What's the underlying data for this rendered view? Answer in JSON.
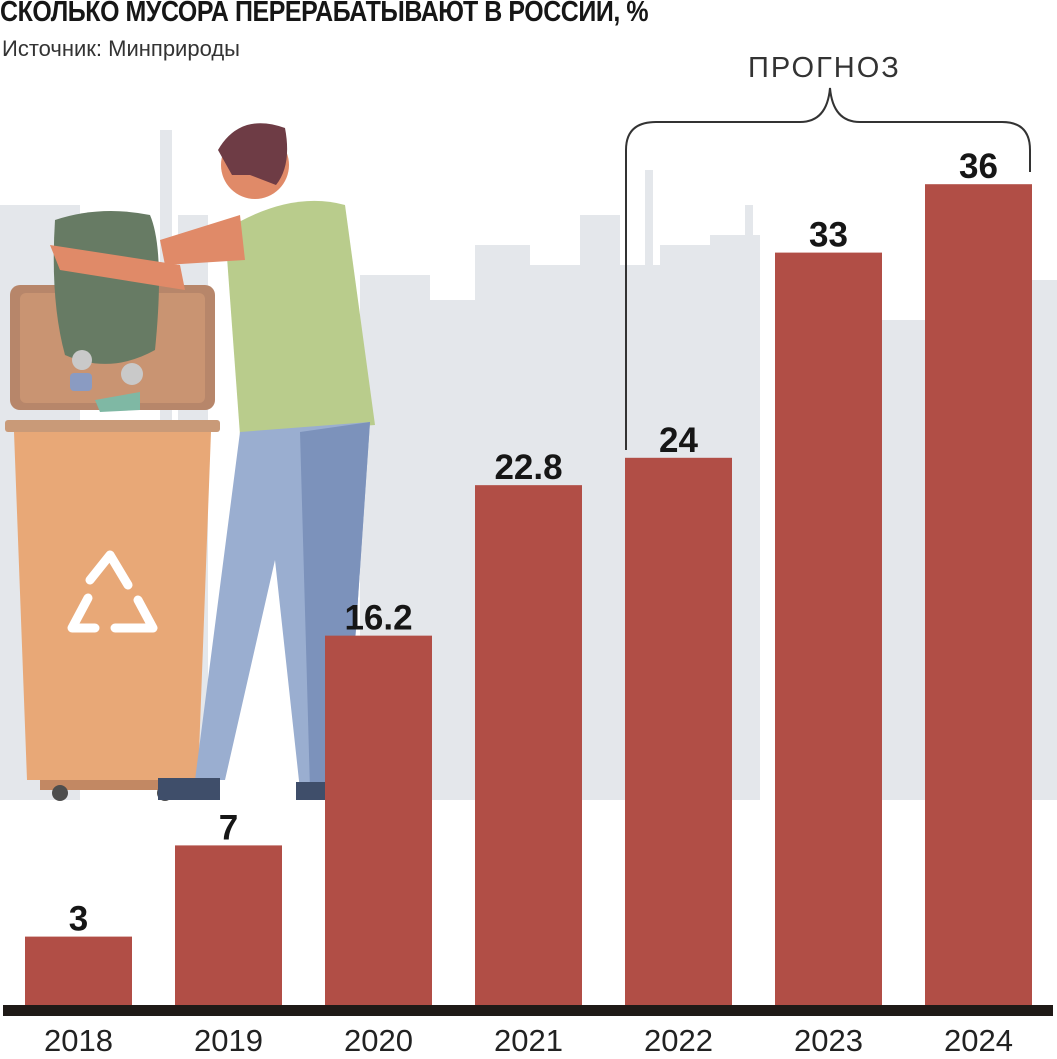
{
  "title": "СКОЛЬКО МУСОРА ПЕРЕРАБАТЫВАЮТ В РОССИИ, %",
  "subtitle": "Источник: Минприроды",
  "forecast_label": "ПРОГНОЗ",
  "colors": {
    "bar": "#b14e46",
    "baseline": "#1f1a17",
    "city": "#e4e7eb",
    "text": "#161616"
  },
  "illustration": {
    "icons": [
      "recycle-icon",
      "person-icon",
      "trash-bin-icon",
      "garbage-bag-icon",
      "city-skyline"
    ]
  },
  "chart_data": {
    "type": "bar",
    "title": "СКОЛЬКО МУСОРА ПЕРЕРАБАТЫВАЮТ В РОССИИ, %",
    "subtitle": "Источник: Минприроды",
    "categories": [
      "2018",
      "2019",
      "2020",
      "2021",
      "2022",
      "2023",
      "2024"
    ],
    "values": [
      3,
      7,
      16.2,
      22.8,
      24,
      33,
      36
    ],
    "value_labels": [
      "3",
      "7",
      "16.2",
      "22.8",
      "24",
      "33",
      "36"
    ],
    "forecast_categories": [
      "2022",
      "2023",
      "2024"
    ],
    "xlabel": "",
    "ylabel": "",
    "ylim": [
      0,
      37
    ],
    "grid": false,
    "legend": "none"
  }
}
